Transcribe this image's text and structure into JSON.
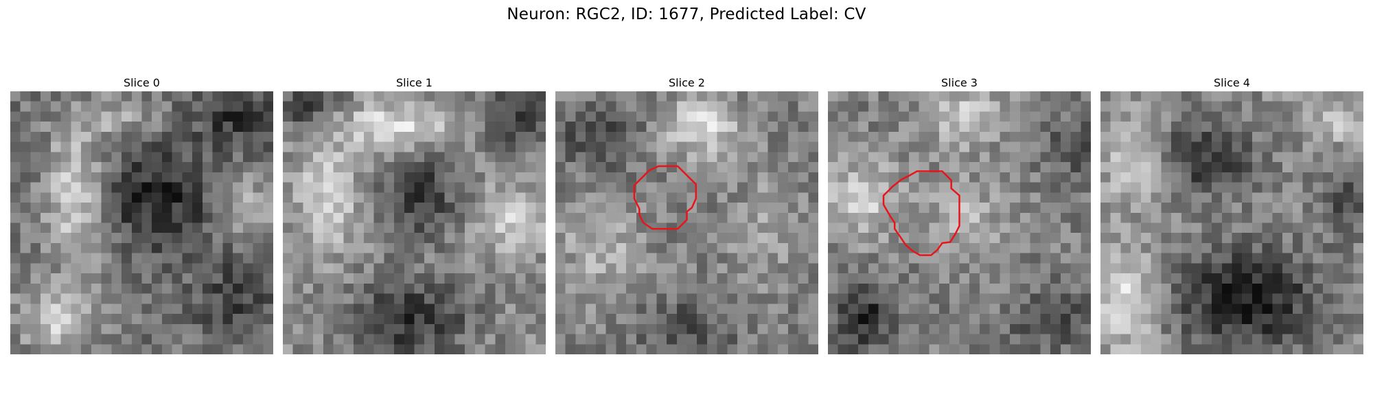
{
  "figure": {
    "title": "Neuron: RGC2, ID: 1677, Predicted Label: CV"
  },
  "panels": [
    {
      "title": "Slice 0",
      "has_contour": false
    },
    {
      "title": "Slice 1",
      "has_contour": false
    },
    {
      "title": "Slice 2",
      "has_contour": true
    },
    {
      "title": "Slice 3",
      "has_contour": true
    },
    {
      "title": "Slice 4",
      "has_contour": false
    }
  ],
  "colors": {
    "contour": "#e8141a",
    "colormap": "gray"
  }
}
